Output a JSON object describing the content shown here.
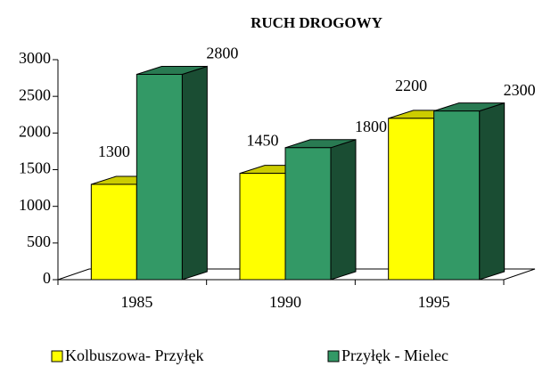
{
  "chart_data": {
    "type": "bar3d",
    "title": "RUCH DROGOWY",
    "categories": [
      "1985",
      "1990",
      "1995"
    ],
    "series": [
      {
        "name": "Kolbuszowa- Przyłęk",
        "color": "#ffff00",
        "values": [
          1300,
          1450,
          2200
        ]
      },
      {
        "name": "Przyłęk - Mielec",
        "color": "#339966",
        "values": [
          2800,
          1800,
          2300
        ]
      }
    ],
    "ylim": [
      0,
      3000
    ],
    "yticks": [
      0,
      500,
      1000,
      1500,
      2000,
      2500,
      3000
    ],
    "grid": false,
    "legend": "bottom"
  }
}
